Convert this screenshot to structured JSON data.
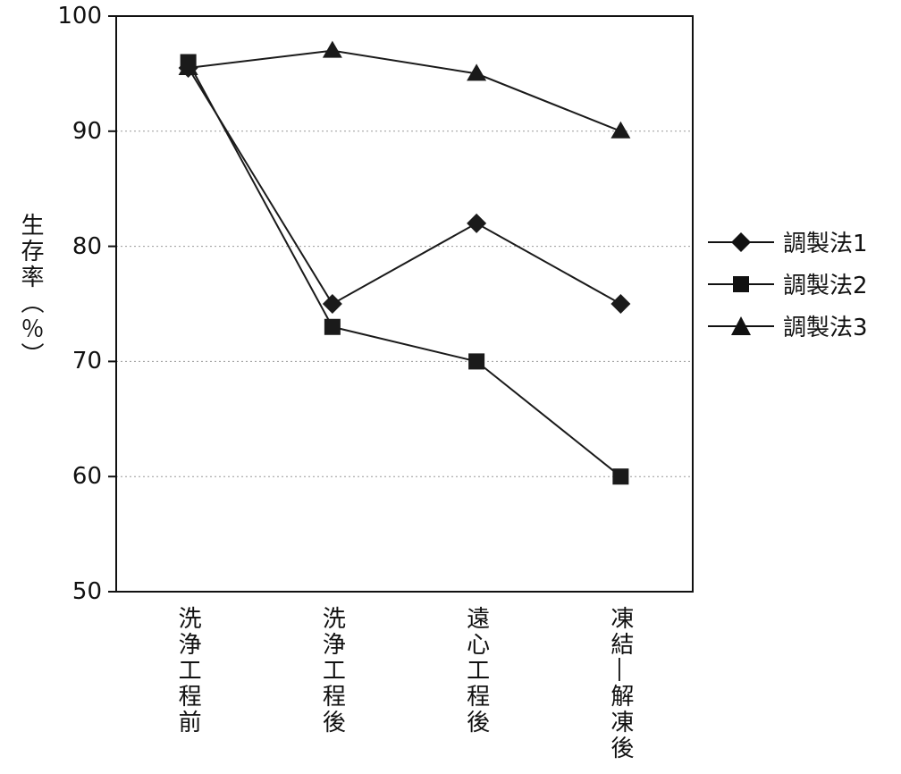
{
  "chart_data": {
    "type": "line",
    "title": "",
    "ylabel": "生存率（％）",
    "xlabel": "",
    "ylim": [
      50,
      100
    ],
    "yticks": [
      50,
      60,
      70,
      80,
      90,
      100
    ],
    "grid": "horizontal-dotted",
    "legend_position": "right",
    "categories": [
      "洗浄工程前",
      "洗浄工程後",
      "遠心工程後",
      "凍結―解凍後"
    ],
    "series": [
      {
        "name": "調製法1",
        "marker": "diamond",
        "values": [
          95.5,
          75,
          82,
          75
        ]
      },
      {
        "name": "調製法2",
        "marker": "square",
        "values": [
          96,
          73,
          70,
          60
        ]
      },
      {
        "name": "調製法3",
        "marker": "triangle",
        "values": [
          95.5,
          97,
          95,
          90
        ]
      }
    ],
    "line_color": "#1a1a1a",
    "marker_color": "#1a1a1a",
    "grid_color": "#999999"
  }
}
